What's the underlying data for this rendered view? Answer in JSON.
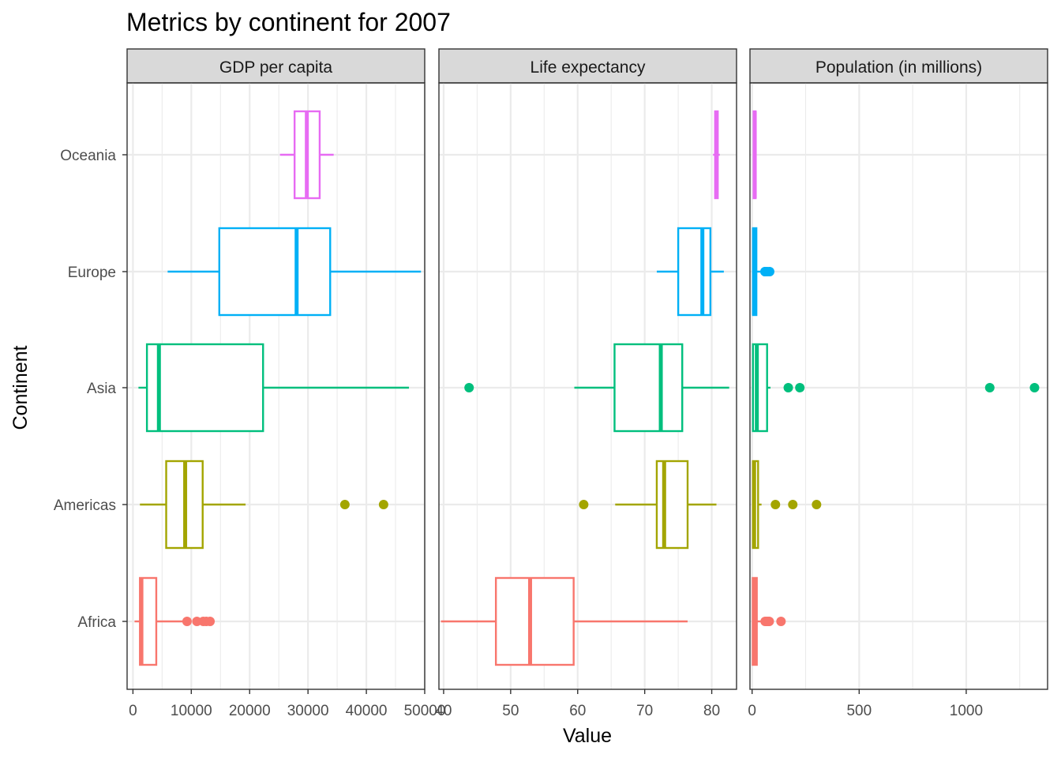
{
  "chart_data": {
    "type": "boxplot",
    "title": "Metrics by continent for 2007",
    "xlabel": "Value",
    "ylabel": "Continent",
    "categories": [
      "Africa",
      "Americas",
      "Asia",
      "Europe",
      "Oceania"
    ],
    "colors": {
      "Africa": "#F8766D",
      "Americas": "#A3A500",
      "Asia": "#00BF7D",
      "Europe": "#00B0F6",
      "Oceania": "#E76BF3"
    },
    "grid": true,
    "legend": "none",
    "panels": [
      {
        "label": "GDP per capita",
        "xlim": [
          -1000,
          50000
        ],
        "ticks": [
          0,
          10000,
          20000,
          30000,
          40000,
          50000
        ],
        "tick_labels": [
          "0",
          "10000",
          "20000",
          "30000",
          "40000",
          "50000"
        ],
        "boxes": [
          {
            "category": "Africa",
            "whisker_low": 280,
            "q1": 1200,
            "median": 1450,
            "q3": 4000,
            "whisker_high": 9800,
            "outliers": [
              9270,
              10960,
              12060,
              12570,
              13210
            ]
          },
          {
            "category": "Americas",
            "whisker_low": 1200,
            "q1": 5700,
            "median": 8950,
            "q3": 11950,
            "whisker_high": 19300,
            "outliers": [
              36320,
              42950
            ]
          },
          {
            "category": "Asia",
            "whisker_low": 950,
            "q1": 2400,
            "median": 4450,
            "q3": 22300,
            "whisker_high": 47300,
            "outliers": []
          },
          {
            "category": "Europe",
            "whisker_low": 5950,
            "q1": 14800,
            "median": 28050,
            "q3": 33800,
            "whisker_high": 49360,
            "outliers": []
          },
          {
            "category": "Oceania",
            "whisker_low": 25200,
            "q1": 27700,
            "median": 29800,
            "q3": 32000,
            "whisker_high": 34400,
            "outliers": []
          }
        ]
      },
      {
        "label": "Life expectancy",
        "xlim": [
          39.3,
          83.7
        ],
        "ticks": [
          40,
          50,
          60,
          70,
          80
        ],
        "tick_labels": [
          "40",
          "50",
          "60",
          "70",
          "80"
        ],
        "boxes": [
          {
            "category": "Africa",
            "whisker_low": 39.6,
            "q1": 47.8,
            "median": 52.9,
            "q3": 59.4,
            "whisker_high": 76.4,
            "outliers": []
          },
          {
            "category": "Americas",
            "whisker_low": 65.6,
            "q1": 71.8,
            "median": 72.9,
            "q3": 76.4,
            "whisker_high": 80.7,
            "outliers": [
              60.9
            ]
          },
          {
            "category": "Asia",
            "whisker_low": 59.5,
            "q1": 65.5,
            "median": 72.4,
            "q3": 75.6,
            "whisker_high": 82.6,
            "outliers": [
              43.8
            ]
          },
          {
            "category": "Europe",
            "whisker_low": 71.8,
            "q1": 75.0,
            "median": 78.6,
            "q3": 79.8,
            "whisker_high": 81.8,
            "outliers": []
          },
          {
            "category": "Oceania",
            "whisker_low": 80.2,
            "q1": 80.5,
            "median": 80.7,
            "q3": 80.9,
            "whisker_high": 81.2,
            "outliers": []
          }
        ]
      },
      {
        "label": "Population (in millions)",
        "xlim": [
          -10,
          1380
        ],
        "ticks": [
          0,
          500,
          1000
        ],
        "tick_labels": [
          "0",
          "500",
          "1000"
        ],
        "boxes": [
          {
            "category": "Africa",
            "whisker_low": 0.2,
            "q1": 2.9,
            "median": 10.1,
            "q3": 22.0,
            "whisker_high": 40.0,
            "outliers": [
              61,
              68,
              71,
              76,
              80,
              135
            ]
          },
          {
            "category": "Americas",
            "whisker_low": 0.3,
            "q1": 4.1,
            "median": 9.3,
            "q3": 28.0,
            "whisker_high": 44.0,
            "outliers": [
              109,
              190,
              301
            ]
          },
          {
            "category": "Asia",
            "whisker_low": 0.7,
            "q1": 4.0,
            "median": 22.0,
            "q3": 70.0,
            "whisker_high": 86.0,
            "outliers": [
              169,
              223,
              1110,
              1319
            ]
          },
          {
            "category": "Europe",
            "whisker_low": 0.3,
            "q1": 4.5,
            "median": 9.5,
            "q3": 20.0,
            "whisker_high": 38.0,
            "outliers": [
              60,
              61,
              71,
              82
            ]
          },
          {
            "category": "Oceania",
            "whisker_low": 4.1,
            "q1": 7.0,
            "median": 12.3,
            "q3": 16.5,
            "whisker_high": 20.4,
            "outliers": []
          }
        ]
      }
    ]
  }
}
